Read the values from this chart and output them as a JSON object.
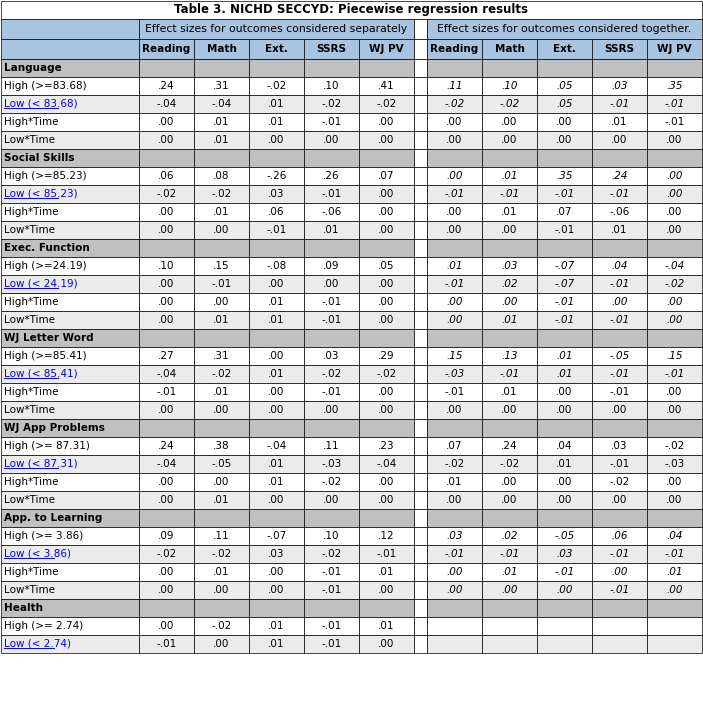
{
  "title": "Table 3. NICHD SECCYD: Piecewise regression results",
  "header1": "Effect sizes for outcomes considered separately",
  "header2": "Effect sizes for outcomes considered together.",
  "col_headers": [
    "Reading",
    "Math",
    "Ext.",
    "SSRS",
    "WJ PV"
  ],
  "bg_header": "#A8C4E0",
  "bg_section": "#C0C0C0",
  "bg_white": "#FFFFFF",
  "rows": [
    {
      "label": "Language",
      "section": true,
      "data1": [
        "",
        "",
        "",
        "",
        ""
      ],
      "data2": [
        "",
        "",
        "",
        "",
        ""
      ]
    },
    {
      "label": "High (>=83.68)",
      "section": false,
      "data1": [
        ".24",
        ".31",
        "-.02",
        ".10",
        ".41"
      ],
      "data2": [
        ".11",
        ".10",
        ".05",
        ".03",
        ".35"
      ]
    },
    {
      "label": "Low (< 83.68)",
      "section": false,
      "low": true,
      "data1": [
        "-.04",
        "-.04",
        ".01",
        "-.02",
        "-.02"
      ],
      "data2": [
        "-.02",
        "-.02",
        ".05",
        "-.01",
        "-.01"
      ]
    },
    {
      "label": "High*Time",
      "section": false,
      "data1": [
        ".00",
        ".01",
        ".01",
        "-.01",
        ".00"
      ],
      "data2": [
        ".00",
        ".00",
        ".00",
        ".01",
        "-.01"
      ]
    },
    {
      "label": "Low*Time",
      "section": false,
      "data1": [
        ".00",
        ".01",
        ".00",
        ".00",
        ".00"
      ],
      "data2": [
        ".00",
        ".00",
        ".00",
        ".00",
        ".00"
      ]
    },
    {
      "label": "Social Skills",
      "section": true,
      "data1": [
        "",
        "",
        "",
        "",
        ""
      ],
      "data2": [
        "",
        "",
        "",
        "",
        ""
      ]
    },
    {
      "label": "High (>=85.23)",
      "section": false,
      "data1": [
        ".06",
        ".08",
        "-.26",
        ".26",
        ".07"
      ],
      "data2": [
        ".00",
        ".01",
        ".35",
        ".24",
        ".00"
      ]
    },
    {
      "label": "Low (< 85.23)",
      "section": false,
      "low": true,
      "data1": [
        "-.02",
        "-.02",
        ".03",
        "-.01",
        ".00"
      ],
      "data2": [
        "-.01",
        "-.01",
        "-.01",
        "-.01",
        ".00"
      ]
    },
    {
      "label": "High*Time",
      "section": false,
      "data1": [
        ".00",
        ".01",
        ".06",
        "-.06",
        ".00"
      ],
      "data2": [
        ".00",
        ".01",
        ".07",
        "-.06",
        ".00"
      ]
    },
    {
      "label": "Low*Time",
      "section": false,
      "data1": [
        ".00",
        ".00",
        "-.01",
        ".01",
        ".00"
      ],
      "data2": [
        ".00",
        ".00",
        "-.01",
        ".01",
        ".00"
      ]
    },
    {
      "label": "Exec. Function",
      "section": true,
      "data1": [
        "",
        "",
        "",
        "",
        ""
      ],
      "data2": [
        "",
        "",
        "",
        "",
        ""
      ]
    },
    {
      "label": "High (>=24.19)",
      "section": false,
      "data1": [
        ".10",
        ".15",
        "-.08",
        ".09",
        ".05"
      ],
      "data2": [
        ".01",
        ".03",
        "-.07",
        ".04",
        "-.04"
      ]
    },
    {
      "label": "Low (< 24.19)",
      "section": false,
      "low": true,
      "data1": [
        ".00",
        "-.01",
        ".00",
        ".00",
        ".00"
      ],
      "data2": [
        "-.01",
        ".02",
        "-.07",
        "-.01",
        "-.02"
      ]
    },
    {
      "label": "High*Time",
      "section": false,
      "data1": [
        ".00",
        ".00",
        ".01",
        "-.01",
        ".00"
      ],
      "data2": [
        ".00",
        ".00",
        "-.01",
        ".00",
        ".00"
      ]
    },
    {
      "label": "Low*Time",
      "section": false,
      "data1": [
        ".00",
        ".01",
        ".01",
        "-.01",
        ".00"
      ],
      "data2": [
        ".00",
        ".01",
        "-.01",
        "-.01",
        ".00"
      ]
    },
    {
      "label": "WJ Letter Word",
      "section": true,
      "data1": [
        "",
        "",
        "",
        "",
        ""
      ],
      "data2": [
        "",
        "",
        "",
        "",
        ""
      ]
    },
    {
      "label": "High (>=85.41)",
      "section": false,
      "data1": [
        ".27",
        ".31",
        ".00",
        ".03",
        ".29"
      ],
      "data2": [
        ".15",
        ".13",
        ".01",
        "-.05",
        ".15"
      ]
    },
    {
      "label": "Low (< 85.41)",
      "section": false,
      "low": true,
      "data1": [
        "-.04",
        "-.02",
        ".01",
        "-.02",
        "-.02"
      ],
      "data2": [
        "-.03",
        "-.01",
        ".01",
        "-.01",
        "-.01"
      ]
    },
    {
      "label": "High*Time",
      "section": false,
      "data1": [
        "-.01",
        ".01",
        ".00",
        "-.01",
        ".00"
      ],
      "data2": [
        "-.01",
        ".01",
        ".00",
        "-.01",
        ".00"
      ]
    },
    {
      "label": "Low*Time",
      "section": false,
      "data1": [
        ".00",
        ".00",
        ".00",
        ".00",
        ".00"
      ],
      "data2": [
        ".00",
        ".00",
        ".00",
        ".00",
        ".00"
      ]
    },
    {
      "label": "WJ App Problems",
      "section": true,
      "data1": [
        "",
        "",
        "",
        "",
        ""
      ],
      "data2": [
        "",
        "",
        "",
        "",
        ""
      ]
    },
    {
      "label": "High (>= 87.31)",
      "section": false,
      "data1": [
        ".24",
        ".38",
        "-.04",
        ".11",
        ".23"
      ],
      "data2": [
        ".07",
        ".24",
        ".04",
        ".03",
        "-.02"
      ]
    },
    {
      "label": "Low (< 87.31)",
      "section": false,
      "low": true,
      "data1": [
        "-.04",
        "-.05",
        ".01",
        "-.03",
        "-.04"
      ],
      "data2": [
        "-.02",
        "-.02",
        ".01",
        "-.01",
        "-.03"
      ]
    },
    {
      "label": "High*Time",
      "section": false,
      "data1": [
        ".00",
        ".00",
        ".01",
        "-.02",
        ".00"
      ],
      "data2": [
        ".01",
        ".00",
        ".00",
        "-.02",
        ".00"
      ]
    },
    {
      "label": "Low*Time",
      "section": false,
      "data1": [
        ".00",
        ".01",
        ".00",
        ".00",
        ".00"
      ],
      "data2": [
        ".00",
        ".00",
        ".00",
        ".00",
        ".00"
      ]
    },
    {
      "label": "App. to Learning",
      "section": true,
      "data1": [
        "",
        "",
        "",
        "",
        ""
      ],
      "data2": [
        "",
        "",
        "",
        "",
        ""
      ]
    },
    {
      "label": "High (>= 3.86)",
      "section": false,
      "data1": [
        ".09",
        ".11",
        "-.07",
        ".10",
        ".12"
      ],
      "data2": [
        ".03",
        ".02",
        "-.05",
        ".06",
        ".04"
      ]
    },
    {
      "label": "Low (< 3.86)",
      "section": false,
      "low": true,
      "data1": [
        "-.02",
        "-.02",
        ".03",
        "-.02",
        "-.01"
      ],
      "data2": [
        "-.01",
        "-.01",
        ".03",
        "-.01",
        "-.01"
      ]
    },
    {
      "label": "High*Time",
      "section": false,
      "data1": [
        ".00",
        ".01",
        ".00",
        "-.01",
        ".01"
      ],
      "data2": [
        ".00",
        ".01",
        "-.01",
        ".00",
        ".01"
      ]
    },
    {
      "label": "Low*Time",
      "section": false,
      "data1": [
        ".00",
        ".00",
        ".00",
        "-.01",
        ".00"
      ],
      "data2": [
        ".00",
        ".00",
        ".00",
        "-.01",
        ".00"
      ]
    },
    {
      "label": "Health",
      "section": true,
      "data1": [
        "",
        "",
        "",
        "",
        ""
      ],
      "data2": [
        "",
        "",
        "",
        "",
        ""
      ]
    },
    {
      "label": "High (>= 2.74)",
      "section": false,
      "data1": [
        ".00",
        "-.02",
        ".01",
        "-.01",
        ".01"
      ],
      "data2": [
        "",
        "",
        "",
        "",
        ""
      ]
    },
    {
      "label": "Low (< 2.74)",
      "section": false,
      "low": true,
      "data1": [
        "-.01",
        ".00",
        ".01",
        "-.01",
        ".00"
      ],
      "data2": [
        "",
        "",
        "",
        "",
        ""
      ]
    }
  ],
  "italic_g2_rows": [
    1,
    2,
    6,
    7,
    11,
    12,
    13,
    14,
    16,
    17,
    26,
    27,
    28,
    29
  ]
}
